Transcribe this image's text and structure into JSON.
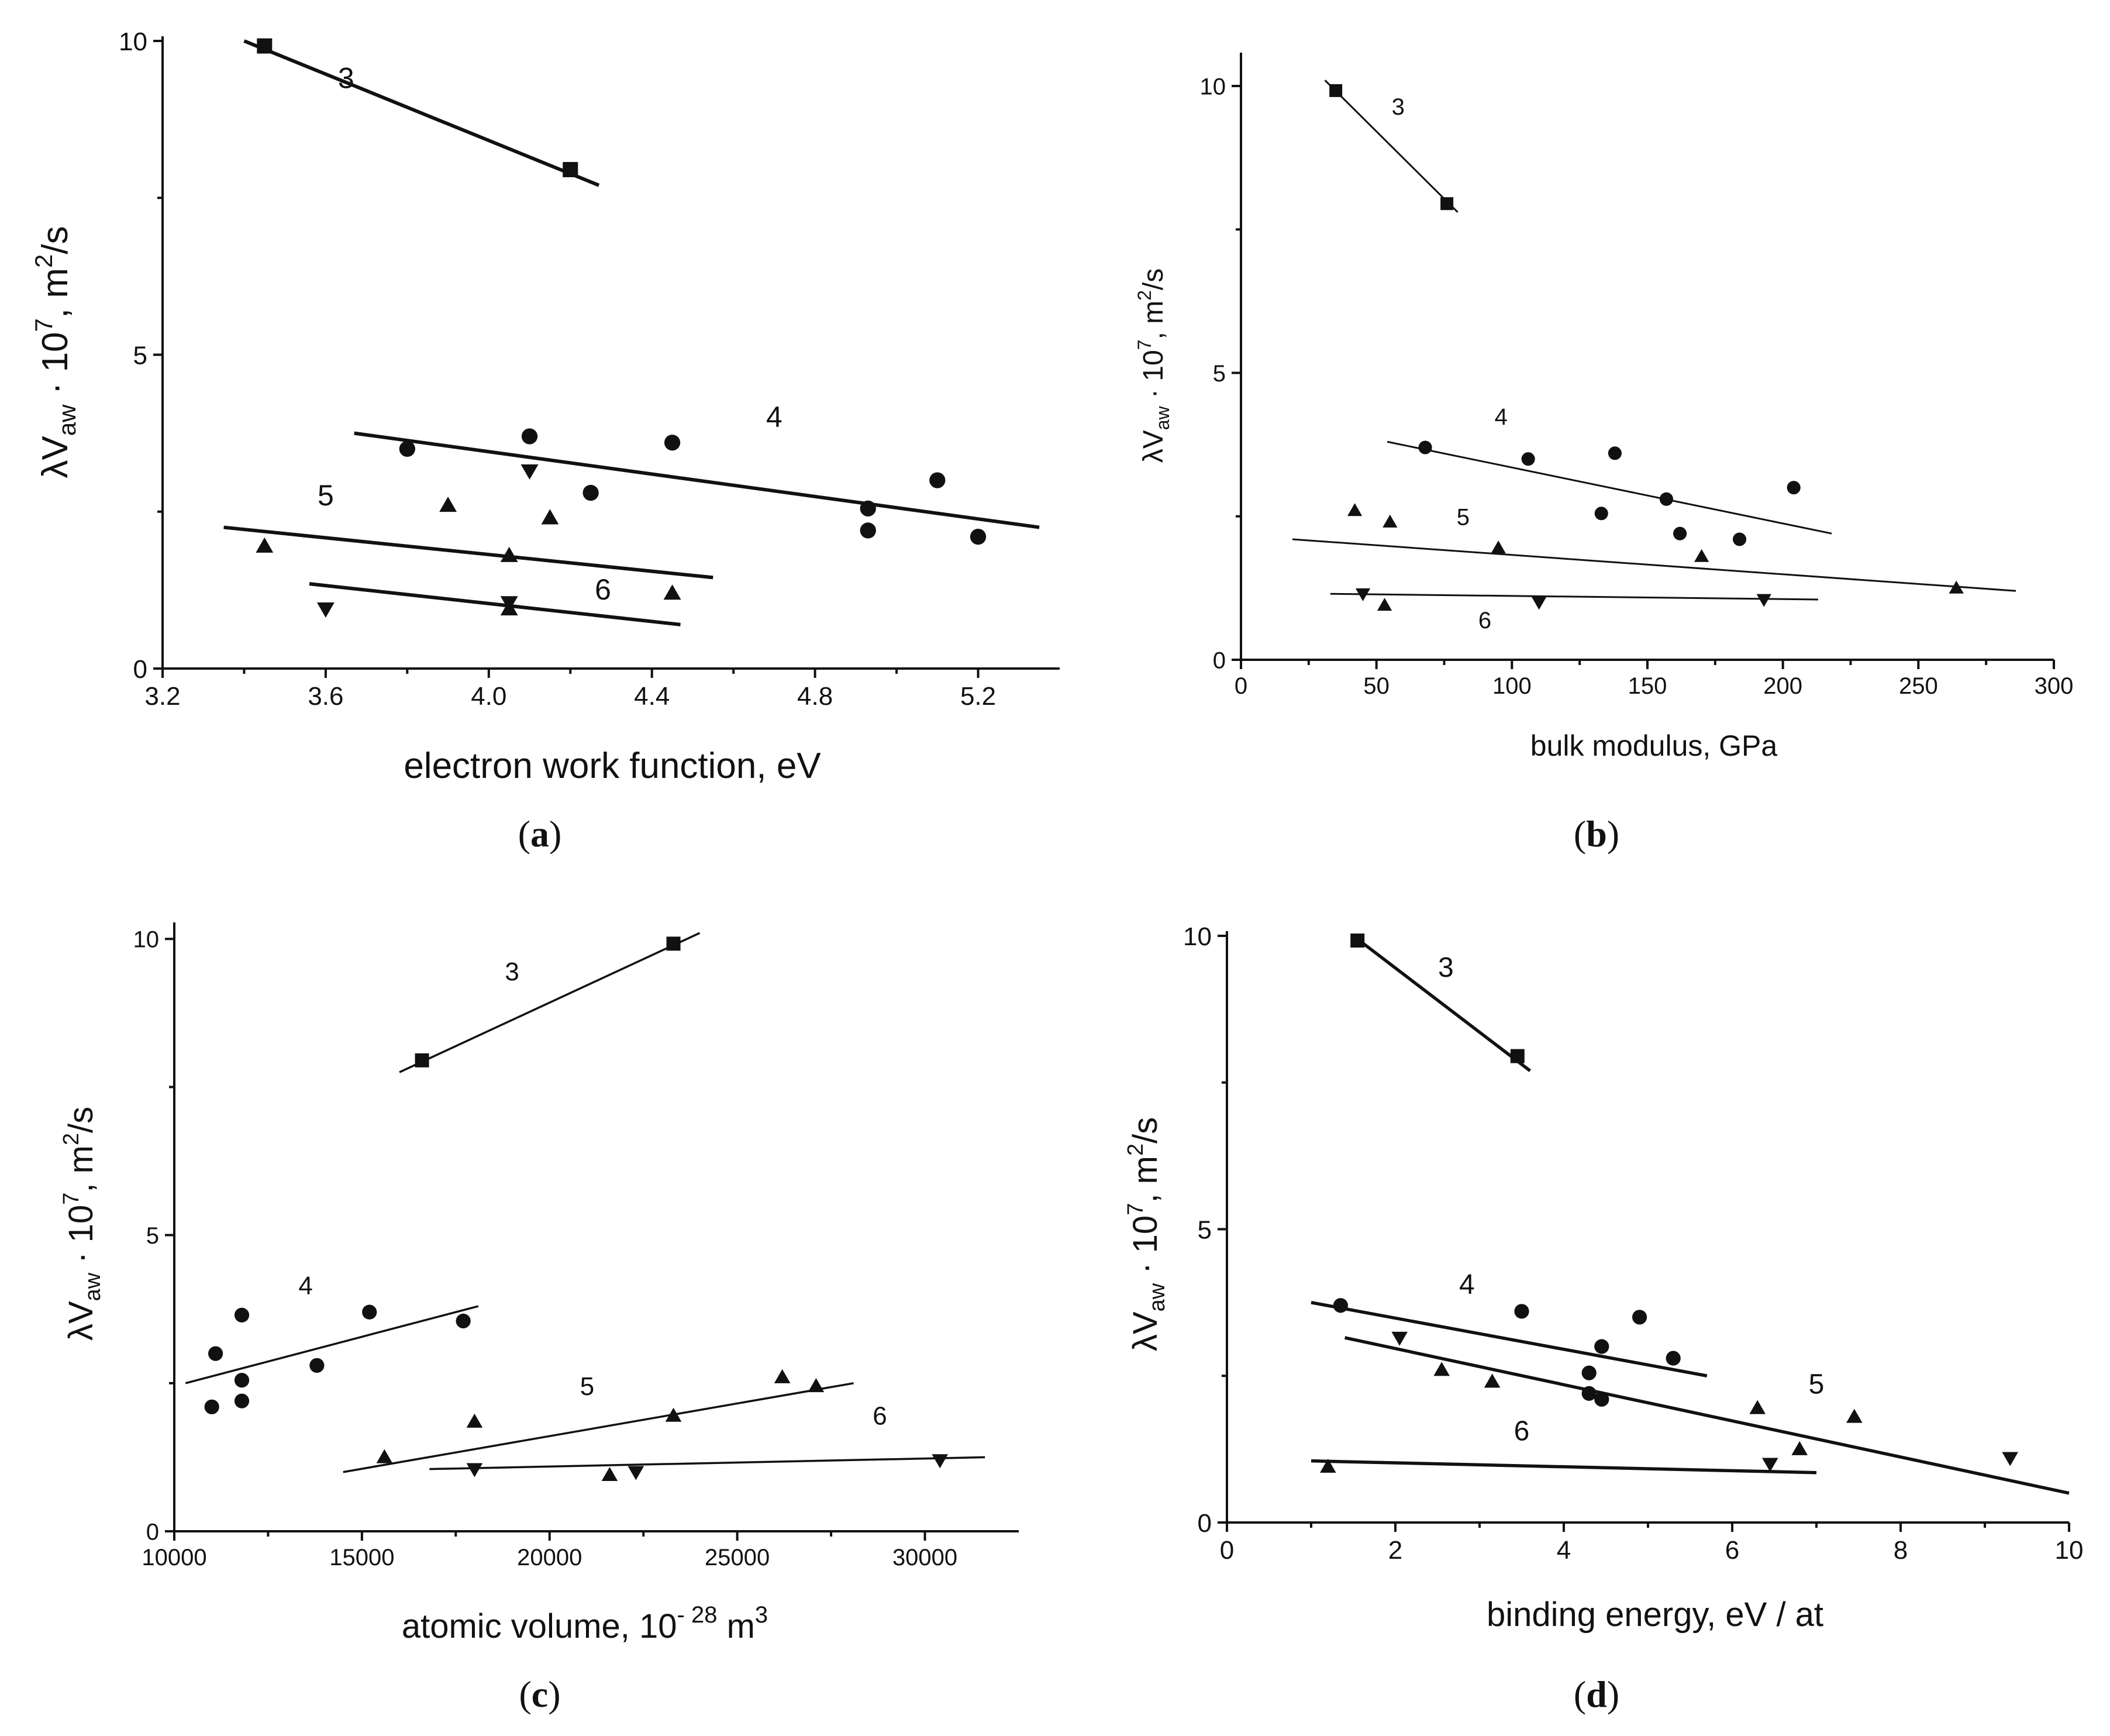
{
  "chart_data": [
    {
      "type": "scatter",
      "panel_id": "a",
      "caption": "a",
      "xlabel": "electron work function, eV",
      "ylabel": "λV_aw · 10^7, m^2/s",
      "xlim": [
        3.2,
        5.4
      ],
      "ylim": [
        0,
        10
      ],
      "xticks": [
        "3.2",
        "3.6",
        "4.0",
        "4.4",
        "4.8",
        "5.2"
      ],
      "yticks": [
        "0",
        "5",
        "10"
      ],
      "series": [
        {
          "name": "3",
          "marker": "square",
          "x": [
            3.45,
            4.2
          ],
          "y": [
            9.92,
            7.95
          ]
        },
        {
          "name": "4",
          "marker": "circle",
          "x": [
            3.8,
            4.1,
            4.25,
            4.45,
            4.93,
            4.93,
            5.1,
            5.2
          ],
          "y": [
            3.5,
            3.7,
            2.8,
            3.6,
            2.55,
            2.2,
            3.0,
            2.1
          ]
        },
        {
          "name": "5",
          "marker": "triangle-up",
          "x": [
            3.45,
            3.9,
            4.05,
            4.15,
            4.05,
            4.45
          ],
          "y": [
            1.95,
            2.6,
            1.8,
            2.4,
            0.95,
            1.2
          ]
        },
        {
          "name": "6",
          "marker": "triangle-down",
          "x": [
            3.6,
            4.05,
            4.1
          ],
          "y": [
            0.95,
            1.05,
            3.15
          ]
        }
      ],
      "fits": [
        {
          "name": "3",
          "x": [
            3.4,
            4.27
          ],
          "y": [
            10.0,
            7.7
          ]
        },
        {
          "name": "4",
          "x": [
            3.67,
            5.35
          ],
          "y": [
            3.75,
            2.25
          ]
        },
        {
          "name": "5",
          "x": [
            3.35,
            4.55
          ],
          "y": [
            2.25,
            1.45
          ]
        },
        {
          "name": "6",
          "x": [
            3.56,
            4.47
          ],
          "y": [
            1.35,
            0.7
          ]
        }
      ],
      "series_labels": [
        {
          "text": "3",
          "x": 3.65,
          "y": 9.25
        },
        {
          "text": "4",
          "x": 4.7,
          "y": 3.85
        },
        {
          "text": "5",
          "x": 3.6,
          "y": 2.6
        },
        {
          "text": "6",
          "x": 4.28,
          "y": 1.1
        }
      ]
    },
    {
      "type": "scatter",
      "panel_id": "b",
      "caption": "b",
      "xlabel": "bulk modulus, GPa",
      "ylabel": "λV_aw · 10^7, m^2/s",
      "xlim": [
        0,
        300
      ],
      "ylim": [
        0,
        10.5
      ],
      "xticks": [
        "0",
        "50",
        "100",
        "150",
        "200",
        "250",
        "300"
      ],
      "yticks": [
        "0",
        "5",
        "10"
      ],
      "series": [
        {
          "name": "3",
          "marker": "square",
          "x": [
            35,
            76
          ],
          "y": [
            9.92,
            7.95
          ]
        },
        {
          "name": "4",
          "marker": "circle",
          "x": [
            68,
            106,
            133,
            138,
            157,
            162,
            184,
            204
          ],
          "y": [
            3.7,
            3.5,
            2.55,
            3.6,
            2.8,
            2.2,
            2.1,
            3.0
          ]
        },
        {
          "name": "5",
          "marker": "triangle-up",
          "x": [
            42,
            55,
            95,
            170,
            264,
            53
          ],
          "y": [
            2.6,
            2.4,
            1.95,
            1.8,
            1.25,
            0.95
          ]
        },
        {
          "name": "6",
          "marker": "triangle-down",
          "x": [
            45,
            110,
            193
          ],
          "y": [
            1.15,
            1.0,
            1.05
          ]
        }
      ],
      "fits": [
        {
          "name": "3",
          "x": [
            31,
            80
          ],
          "y": [
            10.1,
            7.8
          ]
        },
        {
          "name": "4",
          "x": [
            54,
            218
          ],
          "y": [
            3.8,
            2.2
          ]
        },
        {
          "name": "5",
          "x": [
            19,
            286
          ],
          "y": [
            2.1,
            1.2
          ]
        },
        {
          "name": "6",
          "x": [
            33,
            213
          ],
          "y": [
            1.15,
            1.05
          ]
        }
      ],
      "series_labels": [
        {
          "text": "3",
          "x": 58,
          "y": 9.5
        },
        {
          "text": "4",
          "x": 96,
          "y": 4.1
        },
        {
          "text": "5",
          "x": 82,
          "y": 2.35
        },
        {
          "text": "6",
          "x": 90,
          "y": 0.55
        }
      ]
    },
    {
      "type": "scatter",
      "panel_id": "c",
      "caption": "c",
      "xlabel": "atomic volume, 10⁻²⁸ m³",
      "ylabel": "λV_aw · 10^7, m^2/s",
      "xlim": [
        10000,
        32500
      ],
      "ylim": [
        0,
        10.2
      ],
      "xticks": [
        "10000",
        "15000",
        "20000",
        "25000",
        "30000"
      ],
      "yticks": [
        "0",
        "5",
        "10"
      ],
      "series": [
        {
          "name": "3",
          "marker": "square",
          "x": [
            16600,
            23300
          ],
          "y": [
            7.95,
            9.92
          ]
        },
        {
          "name": "4",
          "marker": "circle",
          "x": [
            11100,
            11000,
            11800,
            11800,
            11800,
            13800,
            15200,
            17700
          ],
          "y": [
            3.0,
            2.1,
            3.65,
            2.55,
            2.2,
            2.8,
            3.7,
            3.55
          ]
        },
        {
          "name": "5",
          "marker": "triangle-up",
          "x": [
            15600,
            18000,
            21600,
            23300,
            26200,
            27100
          ],
          "y": [
            1.25,
            1.85,
            0.95,
            1.95,
            2.6,
            2.45
          ]
        },
        {
          "name": "6",
          "marker": "triangle-down",
          "x": [
            18000,
            22300,
            30400
          ],
          "y": [
            1.05,
            1.0,
            1.2
          ]
        }
      ],
      "fits": [
        {
          "name": "3",
          "x": [
            16000,
            24000
          ],
          "y": [
            7.75,
            10.1
          ]
        },
        {
          "name": "4",
          "x": [
            10300,
            18100
          ],
          "y": [
            2.5,
            3.8
          ]
        },
        {
          "name": "5",
          "x": [
            14500,
            28100
          ],
          "y": [
            1.0,
            2.5
          ]
        },
        {
          "name": "6",
          "x": [
            16800,
            31600
          ],
          "y": [
            1.05,
            1.25
          ]
        }
      ],
      "series_labels": [
        {
          "text": "3",
          "x": 19000,
          "y": 9.3
        },
        {
          "text": "4",
          "x": 13500,
          "y": 4.0
        },
        {
          "text": "5",
          "x": 21000,
          "y": 2.3
        },
        {
          "text": "6",
          "x": 28800,
          "y": 1.8
        }
      ]
    },
    {
      "type": "scatter",
      "panel_id": "d",
      "caption": "d",
      "xlabel": "binding energy, eV / at",
      "ylabel": "λV_aw · 10^7, m^2/s",
      "xlim": [
        0,
        10
      ],
      "ylim": [
        0,
        10
      ],
      "xticks": [
        "0",
        "2",
        "4",
        "6",
        "8",
        "10"
      ],
      "yticks": [
        "0",
        "5",
        "10"
      ],
      "series": [
        {
          "name": "3",
          "marker": "square",
          "x": [
            1.55,
            3.45
          ],
          "y": [
            9.92,
            7.95
          ]
        },
        {
          "name": "4",
          "marker": "circle",
          "x": [
            1.35,
            3.5,
            4.3,
            4.3,
            4.45,
            4.45,
            4.9,
            5.3
          ],
          "y": [
            3.7,
            3.6,
            2.55,
            2.2,
            3.0,
            2.1,
            3.5,
            2.8
          ]
        },
        {
          "name": "5",
          "marker": "triangle-up",
          "x": [
            1.2,
            2.55,
            3.15,
            6.3,
            6.8,
            7.45
          ],
          "y": [
            0.95,
            2.6,
            2.4,
            1.95,
            1.25,
            1.8
          ]
        },
        {
          "name": "6",
          "marker": "triangle-down",
          "x": [
            2.05,
            6.45,
            9.3
          ],
          "y": [
            3.15,
            1.0,
            1.1
          ]
        }
      ],
      "fits": [
        {
          "name": "3",
          "x": [
            1.5,
            3.6
          ],
          "y": [
            10.0,
            7.7
          ]
        },
        {
          "name": "4",
          "x": [
            1.0,
            5.7
          ],
          "y": [
            3.75,
            2.5
          ]
        },
        {
          "name": "5",
          "x": [
            1.4,
            10.0
          ],
          "y": [
            3.15,
            0.5
          ]
        },
        {
          "name": "6",
          "x": [
            1.0,
            7.0
          ],
          "y": [
            1.05,
            0.85
          ]
        }
      ],
      "series_labels": [
        {
          "text": "3",
          "x": 2.6,
          "y": 9.3
        },
        {
          "text": "4",
          "x": 2.85,
          "y": 3.9
        },
        {
          "text": "5",
          "x": 7.0,
          "y": 2.2
        },
        {
          "text": "6",
          "x": 3.5,
          "y": 1.4
        }
      ]
    }
  ]
}
